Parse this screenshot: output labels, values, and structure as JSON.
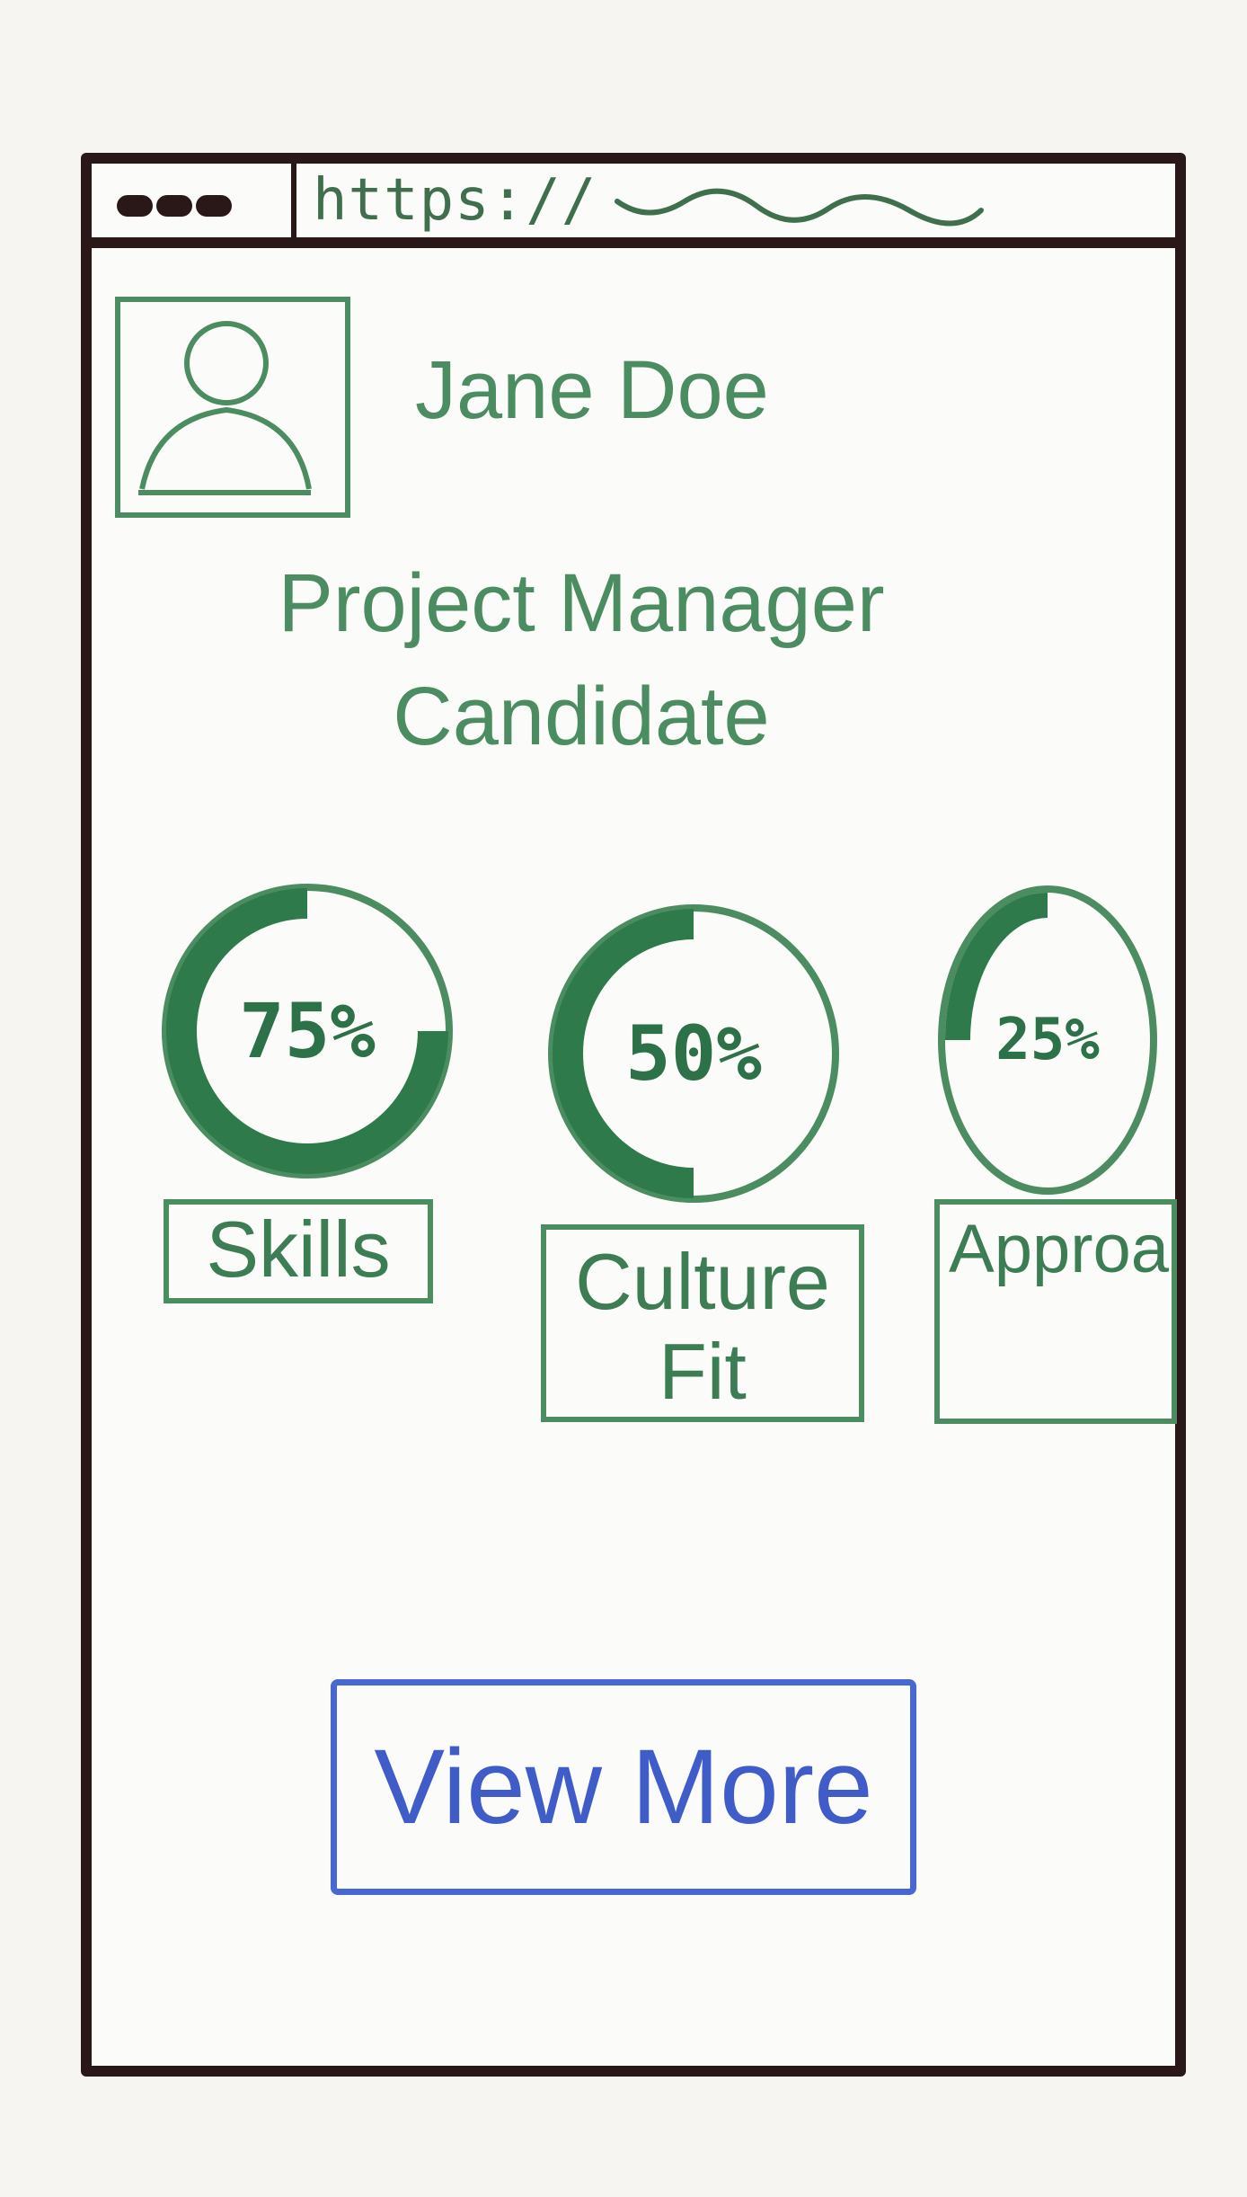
{
  "browser": {
    "url": "https://"
  },
  "profile": {
    "name": "Jane Doe",
    "role": "Project Manager\nCandidate"
  },
  "metrics": [
    {
      "percent_label": "75%",
      "value": 0.75,
      "label": "Skills"
    },
    {
      "percent_label": "50%",
      "value": 0.5,
      "label": "Culture\nFit"
    },
    {
      "percent_label": "25%",
      "value": 0.25,
      "label": "Approa"
    }
  ],
  "actions": {
    "view_more_label": "View More"
  },
  "colors": {
    "frame": "#2a1818",
    "accent_green": "#4b8d60",
    "ring_fill": "#2f7a4b",
    "button_blue": "#4768d0"
  },
  "icons": {
    "avatar": "user-avatar-icon"
  }
}
